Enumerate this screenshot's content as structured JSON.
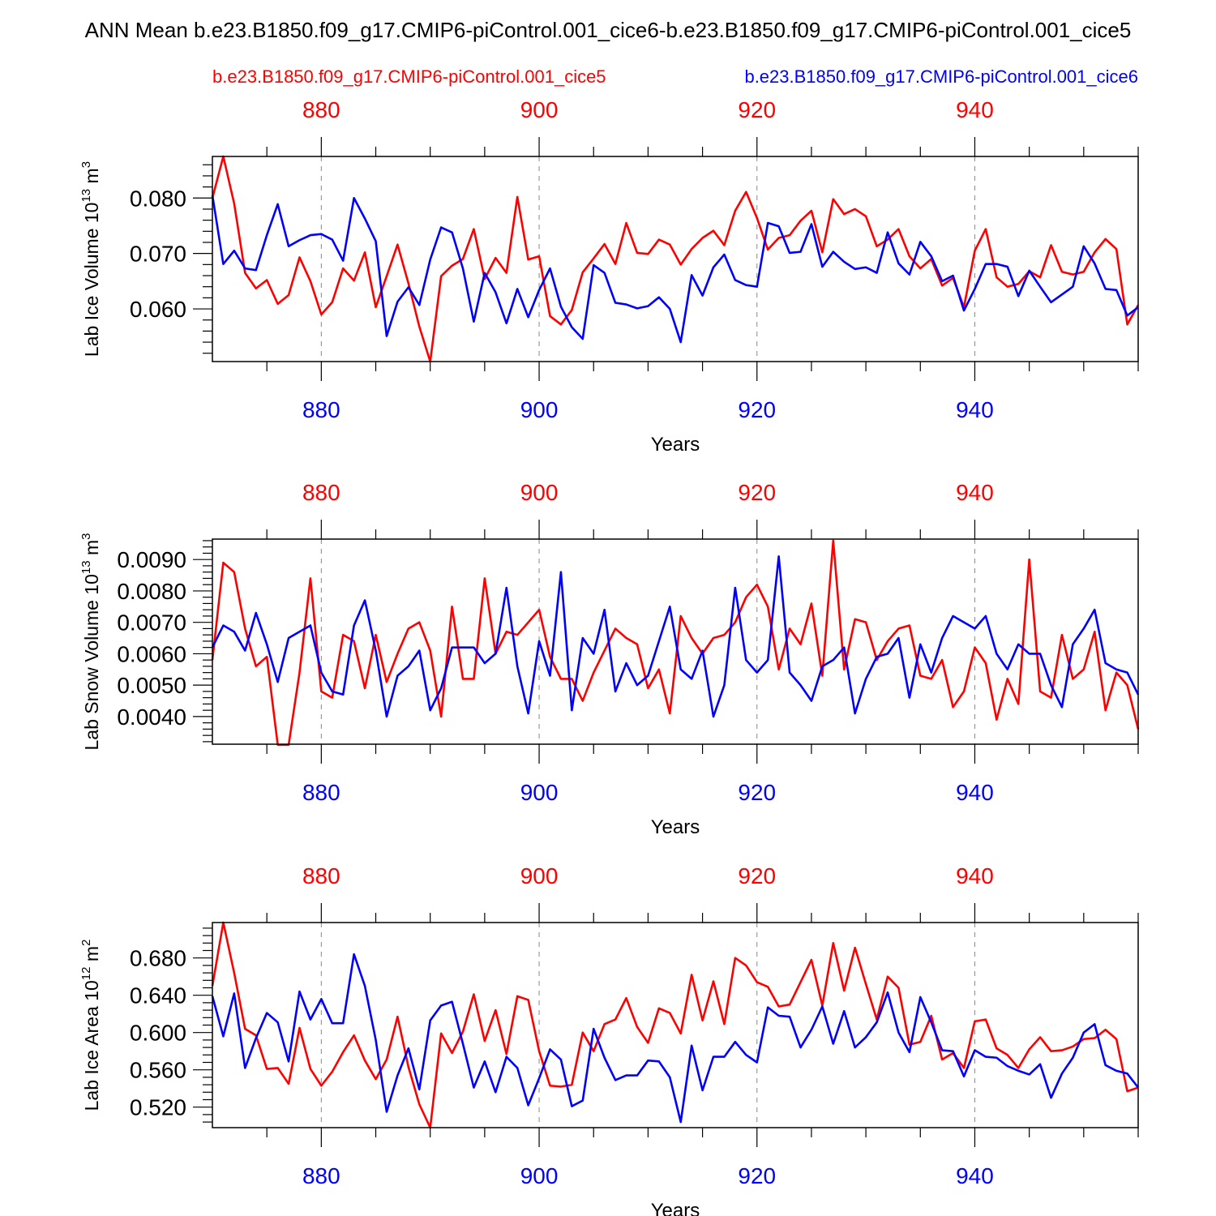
{
  "title": "ANN Mean b.e23.B1850.f09_g17.CMIP6-piControl.001_cice6-b.e23.B1850.f09_g17.CMIP6-piControl.001_cice5",
  "legend": {
    "red_label": "b.e23.B1850.f09_g17.CMIP6-piControl.001_cice5",
    "blue_label": "b.e23.B1850.f09_g17.CMIP6-piControl.001_cice6"
  },
  "colors": {
    "red": "#ff0000",
    "blue": "#0000ff",
    "axis": "#000000",
    "grid": "#888888"
  },
  "chart_data": [
    {
      "type": "line",
      "ylabel": "Lab Ice Volume 10",
      "ylabel_exp": "13",
      "ylabel_unit": " m",
      "ylabel_unit_exp": "3",
      "xlabel": "Years",
      "xlim": [
        870,
        955
      ],
      "ylim": [
        0.0505,
        0.0875
      ],
      "yticks": [
        0.06,
        0.07,
        0.08
      ],
      "ytick_labels": [
        "0.060",
        "0.070",
        "0.080"
      ],
      "yminor_step": 0.002,
      "xticks": [
        880,
        900,
        920,
        940
      ],
      "xtick_labels": [
        "880",
        "900",
        "920",
        "940"
      ],
      "x_start": 870,
      "series": [
        {
          "name": "b.e23.B1850.f09_g17.CMIP6-piControl.001_cice5",
          "color": "#ff0000",
          "values": [
            0.08,
            0.0875,
            0.079,
            0.0665,
            0.0637,
            0.0652,
            0.0609,
            0.0625,
            0.0693,
            0.065,
            0.059,
            0.0612,
            0.0673,
            0.0651,
            0.0702,
            0.0603,
            0.0659,
            0.0716,
            0.0646,
            0.0568,
            0.0505,
            0.0659,
            0.0678,
            0.069,
            0.0744,
            0.0654,
            0.0692,
            0.0665,
            0.0802,
            0.0689,
            0.0695,
            0.0587,
            0.0572,
            0.0598,
            0.0666,
            0.0691,
            0.0717,
            0.0681,
            0.0755,
            0.0701,
            0.0699,
            0.0725,
            0.0716,
            0.068,
            0.0708,
            0.0728,
            0.0741,
            0.0715,
            0.0777,
            0.0811,
            0.0764,
            0.0707,
            0.0728,
            0.0733,
            0.0759,
            0.0777,
            0.0702,
            0.0798,
            0.0771,
            0.078,
            0.0767,
            0.0713,
            0.0725,
            0.0744,
            0.0695,
            0.0673,
            0.069,
            0.0642,
            0.0656,
            0.0603,
            0.0705,
            0.0744,
            0.0657,
            0.064,
            0.0645,
            0.0668,
            0.0657,
            0.0715,
            0.0667,
            0.0662,
            0.0667,
            0.0702,
            0.0726,
            0.0708,
            0.0572,
            0.0607
          ]
        },
        {
          "name": "b.e23.B1850.f09_g17.CMIP6-piControl.001_cice6",
          "color": "#0000ff",
          "values": [
            0.0805,
            0.0681,
            0.0705,
            0.0673,
            0.067,
            0.0733,
            0.0789,
            0.0713,
            0.0724,
            0.0733,
            0.0735,
            0.0725,
            0.0687,
            0.08,
            0.0763,
            0.0722,
            0.0551,
            0.0613,
            0.0639,
            0.0607,
            0.0689,
            0.0747,
            0.0738,
            0.0673,
            0.0577,
            0.0665,
            0.063,
            0.0574,
            0.0636,
            0.0585,
            0.0634,
            0.0673,
            0.0604,
            0.0567,
            0.0546,
            0.0679,
            0.0665,
            0.0611,
            0.0608,
            0.0601,
            0.0605,
            0.0621,
            0.06,
            0.054,
            0.0661,
            0.0624,
            0.0675,
            0.0698,
            0.0652,
            0.0643,
            0.064,
            0.0755,
            0.0749,
            0.0701,
            0.0703,
            0.0753,
            0.0676,
            0.0703,
            0.0685,
            0.0672,
            0.0675,
            0.0665,
            0.0738,
            0.0682,
            0.0662,
            0.0721,
            0.0695,
            0.065,
            0.066,
            0.0597,
            0.0636,
            0.0681,
            0.0681,
            0.0676,
            0.0623,
            0.0669,
            0.064,
            0.0612,
            0.0626,
            0.064,
            0.0713,
            0.0682,
            0.0636,
            0.0634,
            0.0588,
            0.0603
          ]
        }
      ]
    },
    {
      "type": "line",
      "ylabel": "Lab Snow Volume 10",
      "ylabel_exp": "13",
      "ylabel_unit": " m",
      "ylabel_unit_exp": "3",
      "xlabel": "Years",
      "xlim": [
        870,
        955
      ],
      "ylim": [
        0.00312,
        0.00965
      ],
      "yticks": [
        0.004,
        0.005,
        0.006,
        0.007,
        0.008,
        0.009
      ],
      "ytick_labels": [
        "0.0040",
        "0.0050",
        "0.0060",
        "0.0070",
        "0.0080",
        "0.0090"
      ],
      "yminor_step": 0.0002,
      "xticks": [
        880,
        900,
        920,
        940
      ],
      "xtick_labels": [
        "880",
        "900",
        "920",
        "940"
      ],
      "x_start": 870,
      "series": [
        {
          "name": "b.e23.B1850.f09_g17.CMIP6-piControl.001_cice5",
          "color": "#ff0000",
          "values": [
            0.0058,
            0.0089,
            0.0086,
            0.0068,
            0.0056,
            0.0059,
            0.0031,
            0.0031,
            0.0054,
            0.0084,
            0.0048,
            0.0046,
            0.0066,
            0.0064,
            0.0049,
            0.0066,
            0.0051,
            0.006,
            0.0068,
            0.007,
            0.0061,
            0.004,
            0.0075,
            0.0052,
            0.0052,
            0.0084,
            0.006,
            0.0067,
            0.0066,
            0.007,
            0.0074,
            0.0059,
            0.0052,
            0.0052,
            0.0045,
            0.0054,
            0.0061,
            0.0068,
            0.0065,
            0.0063,
            0.0049,
            0.0055,
            0.0041,
            0.0072,
            0.0065,
            0.006,
            0.0065,
            0.0066,
            0.007,
            0.0078,
            0.0082,
            0.0075,
            0.0055,
            0.0068,
            0.0063,
            0.0076,
            0.0053,
            0.0096,
            0.0055,
            0.0071,
            0.007,
            0.0058,
            0.0064,
            0.0068,
            0.0069,
            0.0053,
            0.0052,
            0.0058,
            0.0043,
            0.0048,
            0.0062,
            0.0057,
            0.0039,
            0.0052,
            0.0044,
            0.009,
            0.0048,
            0.0046,
            0.0066,
            0.0052,
            0.0055,
            0.0067,
            0.0042,
            0.0054,
            0.005,
            0.0036
          ]
        },
        {
          "name": "b.e23.B1850.f09_g17.CMIP6-piControl.001_cice6",
          "color": "#0000ff",
          "values": [
            0.0062,
            0.0069,
            0.0067,
            0.0061,
            0.0073,
            0.0063,
            0.0051,
            0.0065,
            0.0067,
            0.0069,
            0.0054,
            0.0048,
            0.0047,
            0.0069,
            0.0077,
            0.0061,
            0.004,
            0.0053,
            0.0056,
            0.0061,
            0.0042,
            0.0049,
            0.0062,
            0.0062,
            0.0062,
            0.0057,
            0.006,
            0.0081,
            0.0056,
            0.0041,
            0.0064,
            0.0053,
            0.0086,
            0.0042,
            0.0065,
            0.006,
            0.0074,
            0.0048,
            0.0057,
            0.005,
            0.0053,
            0.0064,
            0.0075,
            0.0055,
            0.0052,
            0.0061,
            0.004,
            0.005,
            0.0081,
            0.0058,
            0.0054,
            0.0058,
            0.0091,
            0.0054,
            0.005,
            0.0045,
            0.0056,
            0.0058,
            0.0062,
            0.0041,
            0.0052,
            0.0059,
            0.006,
            0.0065,
            0.0046,
            0.0063,
            0.0054,
            0.0065,
            0.0072,
            0.007,
            0.0068,
            0.0072,
            0.006,
            0.0055,
            0.0063,
            0.006,
            0.006,
            0.005,
            0.0043,
            0.0063,
            0.0068,
            0.0074,
            0.0057,
            0.0055,
            0.0054,
            0.0047
          ]
        }
      ]
    },
    {
      "type": "line",
      "ylabel": "Lab Ice Area 10",
      "ylabel_exp": "12",
      "ylabel_unit": " m",
      "ylabel_unit_exp": "2",
      "xlabel": "Years",
      "xlim": [
        870,
        955
      ],
      "ylim": [
        0.498,
        0.718
      ],
      "yticks": [
        0.52,
        0.56,
        0.6,
        0.64,
        0.68
      ],
      "ytick_labels": [
        "0.520",
        "0.560",
        "0.600",
        "0.640",
        "0.680"
      ],
      "yminor_step": 0.008,
      "xticks": [
        880,
        900,
        920,
        940
      ],
      "xtick_labels": [
        "880",
        "900",
        "920",
        "940"
      ],
      "x_start": 870,
      "series": [
        {
          "name": "b.e23.B1850.f09_g17.CMIP6-piControl.001_cice5",
          "color": "#ff0000",
          "values": [
            0.65,
            0.718,
            0.664,
            0.604,
            0.597,
            0.561,
            0.562,
            0.545,
            0.605,
            0.561,
            0.543,
            0.558,
            0.579,
            0.597,
            0.57,
            0.55,
            0.571,
            0.617,
            0.563,
            0.523,
            0.498,
            0.599,
            0.578,
            0.601,
            0.641,
            0.591,
            0.624,
            0.577,
            0.639,
            0.635,
            0.58,
            0.543,
            0.542,
            0.544,
            0.6,
            0.58,
            0.609,
            0.614,
            0.637,
            0.606,
            0.589,
            0.626,
            0.621,
            0.599,
            0.662,
            0.613,
            0.655,
            0.609,
            0.68,
            0.672,
            0.654,
            0.649,
            0.628,
            0.63,
            0.654,
            0.678,
            0.629,
            0.696,
            0.645,
            0.691,
            0.652,
            0.614,
            0.66,
            0.648,
            0.587,
            0.59,
            0.618,
            0.571,
            0.578,
            0.562,
            0.612,
            0.614,
            0.583,
            0.576,
            0.562,
            0.582,
            0.595,
            0.58,
            0.581,
            0.585,
            0.593,
            0.594,
            0.603,
            0.593,
            0.537,
            0.541
          ]
        },
        {
          "name": "b.e23.B1850.f09_g17.CMIP6-piControl.001_cice6",
          "color": "#0000ff",
          "values": [
            0.639,
            0.596,
            0.642,
            0.562,
            0.594,
            0.621,
            0.611,
            0.569,
            0.644,
            0.614,
            0.636,
            0.61,
            0.61,
            0.684,
            0.65,
            0.592,
            0.515,
            0.554,
            0.583,
            0.539,
            0.613,
            0.629,
            0.633,
            0.588,
            0.541,
            0.569,
            0.536,
            0.574,
            0.562,
            0.522,
            0.551,
            0.582,
            0.571,
            0.521,
            0.527,
            0.604,
            0.573,
            0.549,
            0.554,
            0.554,
            0.57,
            0.569,
            0.552,
            0.504,
            0.586,
            0.538,
            0.574,
            0.574,
            0.59,
            0.576,
            0.568,
            0.627,
            0.618,
            0.617,
            0.584,
            0.603,
            0.628,
            0.588,
            0.623,
            0.584,
            0.595,
            0.611,
            0.643,
            0.6,
            0.579,
            0.638,
            0.611,
            0.581,
            0.58,
            0.553,
            0.581,
            0.574,
            0.573,
            0.564,
            0.559,
            0.555,
            0.566,
            0.53,
            0.556,
            0.573,
            0.6,
            0.609,
            0.565,
            0.559,
            0.556,
            0.541
          ]
        }
      ]
    }
  ]
}
